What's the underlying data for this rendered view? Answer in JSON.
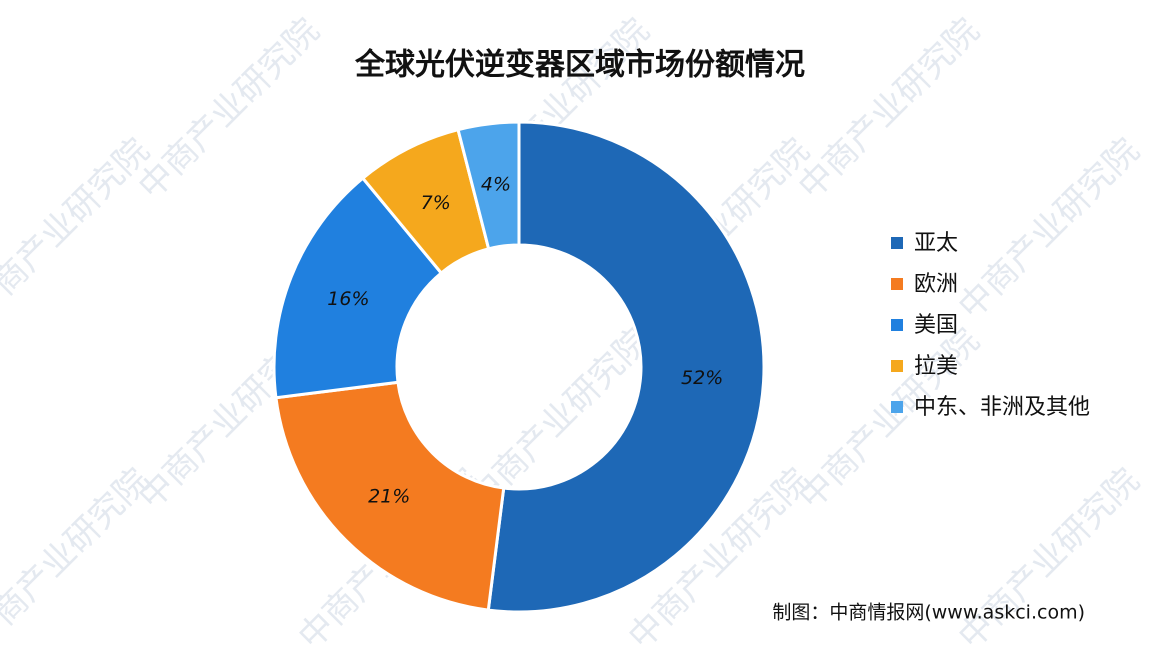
{
  "chart_data": {
    "type": "donut",
    "title": "全球光伏逆变器区域市场份额情况",
    "categories": [
      "亚太",
      "欧洲",
      "美国",
      "拉美",
      "中东、非洲及其他"
    ],
    "values": [
      52,
      21,
      16,
      7,
      4
    ],
    "value_labels": [
      "52%",
      "21%",
      "16%",
      "7%",
      "4%"
    ],
    "colors": [
      "#1e68b6",
      "#f47b20",
      "#2080df",
      "#f5a81d",
      "#4ca4eb"
    ],
    "legend": "right",
    "source": "制图：中商情报网(www.askci.com)",
    "watermark": "中商产业研究院"
  }
}
